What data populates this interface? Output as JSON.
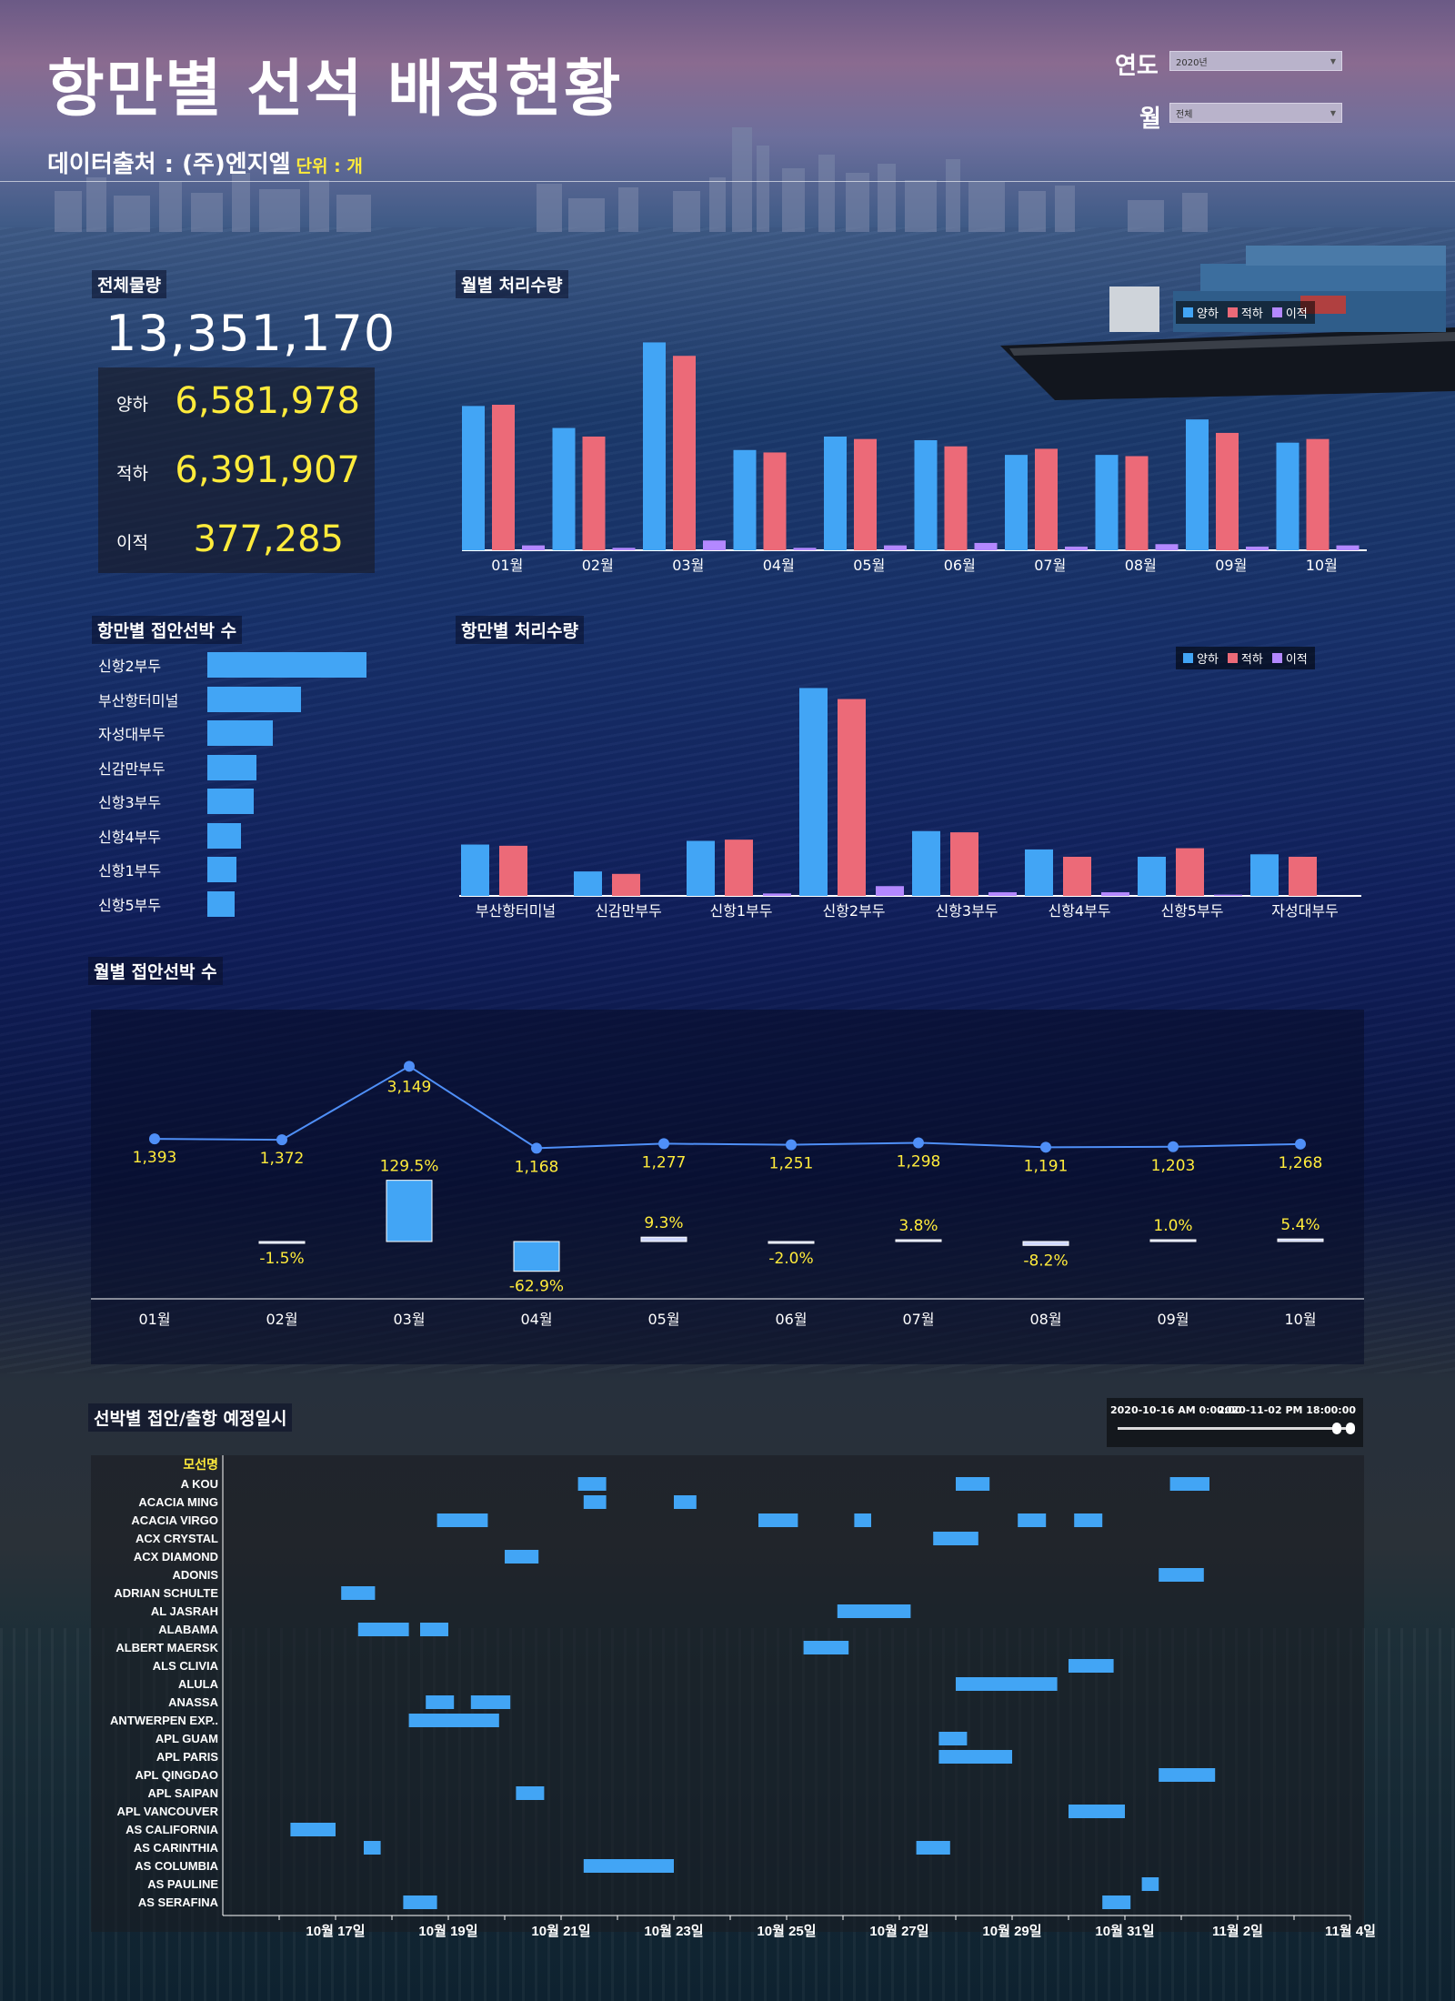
{
  "header": {
    "title": "항만별 선석 배정현황",
    "source": "데이터출처 : (주)엔지엘",
    "unit": "단위 : 개"
  },
  "filters": {
    "year_label": "연도",
    "year_value": "2020년",
    "month_label": "월",
    "month_value": "전체"
  },
  "summary": {
    "title": "전체물량",
    "total": "13,351,170",
    "items": [
      {
        "label": "양하",
        "value": "6,581,978"
      },
      {
        "label": "적하",
        "value": "6,391,907"
      },
      {
        "label": "이적",
        "value": "377,285"
      }
    ]
  },
  "legend": {
    "unload": "양하",
    "load": "적하",
    "transship": "이적"
  },
  "colors": {
    "unload": "#42a5f5",
    "load": "#ec6a78",
    "transship": "#b388ff",
    "line": "#4f8ff7",
    "label": "#ffeb3b"
  },
  "panels": {
    "monthly_volume": "월별 처리수량",
    "port_vessels": "항만별 접안선박 수",
    "port_volume": "항만별 처리수량",
    "monthly_vessels": "월별 접안선박 수",
    "schedule": "선박별 접안/출항 예정일시"
  },
  "chart_data": [
    {
      "type": "bar",
      "title": "월별 처리수량",
      "categories": [
        "01월",
        "02월",
        "03월",
        "04월",
        "05월",
        "06월",
        "07월",
        "08월",
        "09월",
        "10월"
      ],
      "series": [
        {
          "name": "양하",
          "values": [
            118,
            100,
            170,
            82,
            93,
            90,
            78,
            78,
            107,
            88
          ]
        },
        {
          "name": "적하",
          "values": [
            119,
            93,
            159,
            80,
            91,
            85,
            83,
            77,
            96,
            91
          ]
        },
        {
          "name": "이적",
          "values": [
            4,
            2,
            8,
            2,
            4,
            6,
            3,
            5,
            3,
            4
          ]
        }
      ],
      "ylim": [
        0,
        180
      ]
    },
    {
      "type": "bar",
      "orientation": "horizontal",
      "title": "항만별 접안선박 수",
      "categories": [
        "신항2부두",
        "부산항터미널",
        "자성대부두",
        "신감만부두",
        "신항3부두",
        "신항4부두",
        "신항1부두",
        "신항5부두"
      ],
      "values": [
        100,
        59,
        41,
        31,
        29,
        21,
        18,
        17
      ]
    },
    {
      "type": "bar",
      "title": "항만별 처리수량",
      "categories": [
        "부산항터미널",
        "신감만부두",
        "신항1부두",
        "신항2부두",
        "신항3부두",
        "신항4부두",
        "신항5부두",
        "자성대부두"
      ],
      "series": [
        {
          "name": "양하",
          "values": [
            42,
            20,
            45,
            170,
            53,
            38,
            32,
            34
          ]
        },
        {
          "name": "적하",
          "values": [
            41,
            18,
            46,
            161,
            52,
            32,
            39,
            32
          ]
        },
        {
          "name": "이적",
          "values": [
            0,
            0,
            2,
            8,
            3,
            3,
            1,
            0
          ]
        }
      ],
      "ylim": [
        0,
        180
      ]
    },
    {
      "type": "line",
      "title": "월별 접안선박 수",
      "categories": [
        "01월",
        "02월",
        "03월",
        "04월",
        "05월",
        "06월",
        "07월",
        "08월",
        "09월",
        "10월"
      ],
      "values": [
        1393,
        1372,
        3149,
        1168,
        1277,
        1251,
        1298,
        1191,
        1203,
        1268
      ],
      "labels": [
        "1,393",
        "1,372",
        "3,149",
        "1,168",
        "1,277",
        "1,251",
        "1,298",
        "1,191",
        "1,203",
        "1,268"
      ],
      "change_values": [
        null,
        -1.5,
        129.5,
        -62.9,
        9.3,
        -2.0,
        3.8,
        -8.2,
        1.0,
        5.4
      ],
      "change_labels": [
        "",
        "-1.5%",
        "129.5%",
        "-62.9%",
        "9.3%",
        "-2.0%",
        "3.8%",
        "-8.2%",
        "1.0%",
        "5.4%"
      ]
    },
    {
      "type": "gantt",
      "title": "선박별 접안/출항 예정일시",
      "row_header": "모선명",
      "range_start": "2020-10-16 AM 0:00:00",
      "range_end": "2020-11-02 PM 18:00:00",
      "x_ticks": [
        "10월 17일",
        "10월 19일",
        "10월 21일",
        "10월 23일",
        "10월 25일",
        "10월 27일",
        "10월 29일",
        "10월 31일",
        "11월 2일",
        "11월 4일"
      ],
      "x_tick_days": [
        17,
        19,
        21,
        23,
        25,
        27,
        29,
        31,
        33,
        35
      ],
      "rows": [
        {
          "name": "A KOU",
          "spans": [
            [
              21.3,
              21.8
            ],
            [
              28.0,
              28.6
            ],
            [
              31.8,
              32.5
            ]
          ]
        },
        {
          "name": "ACACIA MING",
          "spans": [
            [
              21.4,
              21.8
            ],
            [
              23.0,
              23.4
            ]
          ]
        },
        {
          "name": "ACACIA VIRGO",
          "spans": [
            [
              18.8,
              19.7
            ],
            [
              24.5,
              25.2
            ],
            [
              26.2,
              26.5
            ],
            [
              29.1,
              29.6
            ],
            [
              30.1,
              30.6
            ]
          ]
        },
        {
          "name": "ACX CRYSTAL",
          "spans": [
            [
              27.6,
              28.4
            ]
          ]
        },
        {
          "name": "ACX DIAMOND",
          "spans": [
            [
              20.0,
              20.6
            ]
          ]
        },
        {
          "name": "ADONIS",
          "spans": [
            [
              31.6,
              32.4
            ]
          ]
        },
        {
          "name": "ADRIAN SCHULTE",
          "spans": [
            [
              17.1,
              17.7
            ]
          ]
        },
        {
          "name": "AL JASRAH",
          "spans": [
            [
              25.9,
              27.2
            ]
          ]
        },
        {
          "name": "ALABAMA",
          "spans": [
            [
              17.4,
              18.3
            ],
            [
              18.5,
              19.0
            ]
          ]
        },
        {
          "name": "ALBERT MAERSK",
          "spans": [
            [
              25.3,
              26.1
            ]
          ]
        },
        {
          "name": "ALS CLIVIA",
          "spans": [
            [
              30.0,
              30.8
            ]
          ]
        },
        {
          "name": "ALULA",
          "spans": [
            [
              28.0,
              29.8
            ]
          ]
        },
        {
          "name": "ANASSA",
          "spans": [
            [
              18.6,
              19.1
            ],
            [
              19.4,
              20.1
            ]
          ]
        },
        {
          "name": "ANTWERPEN EXP..",
          "spans": [
            [
              18.3,
              19.9
            ]
          ]
        },
        {
          "name": "APL GUAM",
          "spans": [
            [
              27.7,
              28.2
            ]
          ]
        },
        {
          "name": "APL PARIS",
          "spans": [
            [
              27.7,
              29.0
            ]
          ]
        },
        {
          "name": "APL QINGDAO",
          "spans": [
            [
              31.6,
              32.6
            ]
          ]
        },
        {
          "name": "APL SAIPAN",
          "spans": [
            [
              20.2,
              20.7
            ]
          ]
        },
        {
          "name": "APL VANCOUVER",
          "spans": [
            [
              30.0,
              31.0
            ]
          ]
        },
        {
          "name": "AS CALIFORNIA",
          "spans": [
            [
              16.2,
              17.0
            ]
          ]
        },
        {
          "name": "AS CARINTHIA",
          "spans": [
            [
              17.5,
              17.8
            ],
            [
              27.3,
              27.9
            ]
          ]
        },
        {
          "name": "AS COLUMBIA",
          "spans": [
            [
              21.4,
              23.0
            ]
          ]
        },
        {
          "name": "AS PAULINE",
          "spans": [
            [
              31.3,
              31.6
            ]
          ]
        },
        {
          "name": "AS SERAFINA",
          "spans": [
            [
              18.2,
              18.8
            ],
            [
              30.6,
              31.1
            ]
          ]
        }
      ]
    }
  ]
}
